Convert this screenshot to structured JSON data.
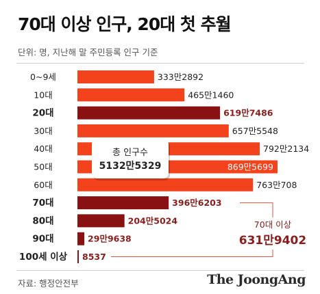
{
  "title": "70대 이상 인구, 20대 첫 추월",
  "subtitle": "단위: 명, 지난해 말 주민등록 인구 기준",
  "source": "자료: 행정안전부",
  "brand": "The JoongAng",
  "colors": {
    "bar_regular": "#f2431d",
    "bar_highlight": "#8a1111",
    "text_highlight": "#8c1d1d",
    "connector": "#e0533a"
  },
  "chart_data": {
    "type": "bar",
    "orientation": "horizontal",
    "categories": [
      "0~9세",
      "10대",
      "20대",
      "30대",
      "40대",
      "50대",
      "60대",
      "70대",
      "80대",
      "90대",
      "100세 이상"
    ],
    "values": [
      3332892,
      4651460,
      6197486,
      6575548,
      7922134,
      8695699,
      7630708,
      3966203,
      2045024,
      299638,
      8537
    ],
    "value_labels": [
      "333만2892",
      "465만1460",
      "619만7486",
      "657만5548",
      "792만2134",
      "869만5699",
      "763만708",
      "396만6203",
      "204만5024",
      "29만9638",
      "8537"
    ],
    "highlighted": [
      false,
      false,
      true,
      false,
      false,
      false,
      false,
      true,
      true,
      true,
      true
    ],
    "total_box": {
      "label": "총 인구수",
      "value": "5132만5329"
    },
    "annotation": {
      "label": "70대 이상",
      "value": "631만9402"
    }
  }
}
